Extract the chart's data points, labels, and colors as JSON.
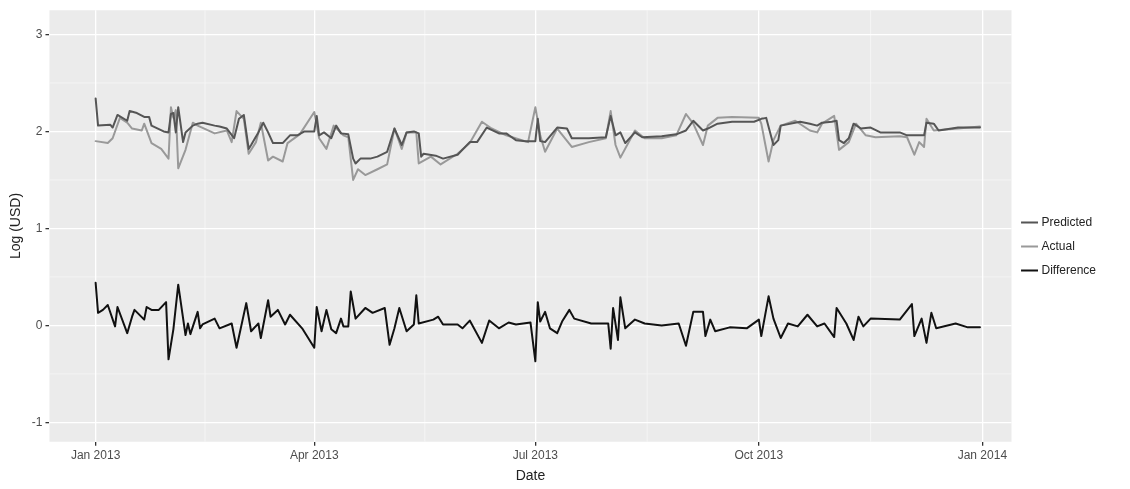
{
  "chart_data": {
    "type": "line",
    "xlabel": "Date",
    "ylabel": "Log (USD)",
    "xlim": [
      "2012-12-13",
      "2014-01-13"
    ],
    "xticks": [
      {
        "value": "2013-01-01",
        "label": "Jan 2013"
      },
      {
        "value": "2013-04-01",
        "label": "Apr 2013"
      },
      {
        "value": "2013-07-01",
        "label": "Jul 2013"
      },
      {
        "value": "2013-10-01",
        "label": "Oct 2013"
      },
      {
        "value": "2014-01-01",
        "label": "Jan 2014"
      }
    ],
    "ylim": [
      -1.2,
      3.25
    ],
    "yticks": [
      -1,
      0,
      1,
      2,
      3
    ],
    "grid": true,
    "legend": "right",
    "line_style": "solid",
    "marker": "none",
    "series": [
      {
        "name": "Predicted",
        "color": "#555555",
        "x": [
          "2013-01-01",
          "2013-01-02",
          "2013-01-07",
          "2013-01-08",
          "2013-01-10",
          "2013-01-14",
          "2013-01-15",
          "2013-01-18",
          "2013-01-21",
          "2013-01-23",
          "2013-01-24",
          "2013-01-29",
          "2013-01-31",
          "2013-02-01",
          "2013-02-02",
          "2013-02-03",
          "2013-02-04",
          "2013-02-06",
          "2013-02-07",
          "2013-02-10",
          "2013-02-12",
          "2013-02-14",
          "2013-02-19",
          "2013-02-21",
          "2013-02-24",
          "2013-02-27",
          "2013-03-01",
          "2013-03-03",
          "2013-03-05",
          "2013-03-06",
          "2013-03-09",
          "2013-03-11",
          "2013-03-13",
          "2013-03-15",
          "2013-03-19",
          "2013-03-22",
          "2013-03-25",
          "2013-03-28",
          "2013-04-01",
          "2013-04-02",
          "2013-04-03",
          "2013-04-05",
          "2013-04-08",
          "2013-04-10",
          "2013-04-12",
          "2013-04-15",
          "2013-04-17",
          "2013-04-18",
          "2013-04-20",
          "2013-04-24",
          "2013-04-27",
          "2013-05-01",
          "2013-05-04",
          "2013-05-07",
          "2013-05-09",
          "2013-05-12",
          "2013-05-14",
          "2013-05-15",
          "2013-05-16",
          "2013-05-21",
          "2013-05-24",
          "2013-05-30",
          "2013-06-04",
          "2013-06-07",
          "2013-06-11",
          "2013-06-16",
          "2013-06-19",
          "2013-06-23",
          "2013-06-27",
          "2013-07-01",
          "2013-07-02",
          "2013-07-03",
          "2013-07-05",
          "2013-07-10",
          "2013-07-14",
          "2013-07-16",
          "2013-07-23",
          "2013-07-30",
          "2013-08-01",
          "2013-08-03",
          "2013-08-05",
          "2013-08-07",
          "2013-08-11",
          "2013-08-14",
          "2013-08-22",
          "2013-08-28",
          "2013-09-01",
          "2013-09-04",
          "2013-09-08",
          "2013-09-10",
          "2013-09-14",
          "2013-09-20",
          "2013-09-29",
          "2013-10-02",
          "2013-10-04",
          "2013-10-07",
          "2013-10-09",
          "2013-10-10",
          "2013-10-18",
          "2013-10-22",
          "2013-10-25",
          "2013-10-27",
          "2013-10-31",
          "2013-11-02",
          "2013-11-03",
          "2013-11-05",
          "2013-11-07",
          "2013-11-09",
          "2013-11-12",
          "2013-11-16",
          "2013-11-20",
          "2013-11-28",
          "2013-12-01",
          "2013-12-04",
          "2013-12-08",
          "2013-12-09",
          "2013-12-12",
          "2013-12-14",
          "2013-12-22",
          "2013-12-31"
        ],
        "values": [
          2.34,
          2.06,
          2.07,
          2.04,
          2.17,
          2.11,
          2.21,
          2.19,
          2.15,
          2.15,
          2.06,
          2.0,
          1.99,
          2.18,
          2.19,
          1.99,
          2.25,
          1.89,
          1.99,
          2.06,
          2.08,
          2.09,
          2.06,
          2.05,
          2.03,
          1.93,
          2.13,
          2.17,
          1.82,
          1.86,
          1.99,
          2.09,
          1.99,
          1.88,
          1.88,
          1.96,
          1.96,
          2.0,
          2.0,
          2.16,
          1.96,
          1.99,
          1.93,
          2.06,
          1.98,
          1.97,
          1.72,
          1.67,
          1.72,
          1.72,
          1.74,
          1.79,
          2.03,
          1.86,
          1.99,
          2.0,
          1.98,
          1.74,
          1.77,
          1.75,
          1.72,
          1.76,
          1.89,
          1.89,
          2.04,
          1.98,
          1.98,
          1.91,
          1.9,
          1.9,
          2.13,
          1.9,
          1.89,
          2.04,
          2.03,
          1.93,
          1.93,
          1.94,
          2.16,
          1.96,
          1.99,
          1.88,
          1.99,
          1.94,
          1.95,
          1.97,
          2.01,
          2.11,
          2.01,
          2.03,
          2.08,
          2.1,
          2.1,
          2.13,
          2.14,
          1.86,
          1.91,
          2.06,
          2.1,
          2.08,
          2.06,
          2.09,
          2.1,
          2.11,
          1.91,
          1.88,
          1.93,
          2.08,
          2.03,
          2.04,
          1.99,
          1.99,
          1.96,
          1.96,
          1.96,
          2.09,
          2.08,
          2.01,
          2.04,
          2.04
        ]
      },
      {
        "name": "Actual",
        "color": "#999999",
        "x": [
          "2013-01-01",
          "2013-01-06",
          "2013-01-08",
          "2013-01-11",
          "2013-01-14",
          "2013-01-16",
          "2013-01-20",
          "2013-01-21",
          "2013-01-24",
          "2013-01-28",
          "2013-01-31",
          "2013-02-01",
          "2013-02-02",
          "2013-02-03",
          "2013-02-04",
          "2013-02-07",
          "2013-02-10",
          "2013-02-12",
          "2013-02-19",
          "2013-02-24",
          "2013-02-26",
          "2013-02-28",
          "2013-03-03",
          "2013-03-05",
          "2013-03-08",
          "2013-03-10",
          "2013-03-13",
          "2013-03-15",
          "2013-03-19",
          "2013-03-21",
          "2013-03-26",
          "2013-04-01",
          "2013-04-03",
          "2013-04-06",
          "2013-04-09",
          "2013-04-13",
          "2013-04-15",
          "2013-04-17",
          "2013-04-19",
          "2013-04-22",
          "2013-04-27",
          "2013-05-01",
          "2013-05-04",
          "2013-05-07",
          "2013-05-09",
          "2013-05-13",
          "2013-05-14",
          "2013-05-19",
          "2013-05-23",
          "2013-05-30",
          "2013-06-04",
          "2013-06-09",
          "2013-06-13",
          "2013-06-19",
          "2013-06-28",
          "2013-07-01",
          "2013-07-03",
          "2013-07-05",
          "2013-07-10",
          "2013-07-16",
          "2013-07-23",
          "2013-07-30",
          "2013-08-01",
          "2013-08-03",
          "2013-08-05",
          "2013-08-11",
          "2013-08-15",
          "2013-08-22",
          "2013-08-28",
          "2013-09-01",
          "2013-09-04",
          "2013-09-08",
          "2013-09-10",
          "2013-09-14",
          "2013-09-20",
          "2013-10-01",
          "2013-10-02",
          "2013-10-05",
          "2013-10-07",
          "2013-10-10",
          "2013-10-16",
          "2013-10-22",
          "2013-10-25",
          "2013-10-27",
          "2013-11-01",
          "2013-11-03",
          "2013-11-07",
          "2013-11-10",
          "2013-11-14",
          "2013-11-18",
          "2013-11-28",
          "2013-12-01",
          "2013-12-04",
          "2013-12-06",
          "2013-12-08",
          "2013-12-09",
          "2013-12-12",
          "2013-12-22",
          "2013-12-31"
        ],
        "values": [
          1.9,
          1.88,
          1.93,
          2.14,
          2.09,
          2.03,
          2.01,
          2.08,
          1.88,
          1.82,
          1.72,
          2.25,
          2.14,
          2.22,
          1.62,
          1.81,
          2.09,
          2.06,
          1.98,
          2.01,
          1.89,
          2.21,
          2.13,
          1.77,
          1.89,
          2.09,
          1.7,
          1.74,
          1.69,
          1.88,
          1.97,
          2.2,
          1.93,
          1.82,
          2.06,
          1.96,
          1.94,
          1.5,
          1.61,
          1.55,
          1.61,
          1.66,
          2.03,
          1.82,
          1.99,
          1.99,
          1.67,
          1.74,
          1.66,
          1.77,
          1.88,
          2.1,
          2.03,
          1.96,
          1.89,
          2.25,
          1.96,
          1.79,
          2.03,
          1.84,
          1.89,
          1.93,
          2.21,
          1.86,
          1.73,
          2.01,
          1.93,
          1.93,
          1.96,
          2.18,
          2.08,
          1.86,
          2.06,
          2.14,
          2.15,
          2.14,
          2.08,
          1.69,
          1.91,
          2.06,
          2.11,
          2.01,
          1.99,
          2.08,
          2.16,
          1.81,
          1.89,
          2.08,
          1.96,
          1.94,
          1.95,
          1.94,
          1.76,
          1.89,
          1.84,
          2.13,
          2.01,
          2.03,
          2.05
        ]
      },
      {
        "name": "Difference",
        "color": "#111111",
        "x": [
          "2013-01-01",
          "2013-01-02",
          "2013-01-04",
          "2013-01-06",
          "2013-01-09",
          "2013-01-10",
          "2013-01-14",
          "2013-01-16",
          "2013-01-17",
          "2013-01-21",
          "2013-01-22",
          "2013-01-24",
          "2013-01-27",
          "2013-01-30",
          "2013-01-31",
          "2013-02-02",
          "2013-02-04",
          "2013-02-07",
          "2013-02-08",
          "2013-02-09",
          "2013-02-12",
          "2013-02-13",
          "2013-02-14",
          "2013-02-19",
          "2013-02-21",
          "2013-02-26",
          "2013-02-28",
          "2013-03-04",
          "2013-03-06",
          "2013-03-09",
          "2013-03-10",
          "2013-03-13",
          "2013-03-14",
          "2013-03-17",
          "2013-03-20",
          "2013-03-22",
          "2013-03-27",
          "2013-04-01",
          "2013-04-02",
          "2013-04-04",
          "2013-04-06",
          "2013-04-08",
          "2013-04-10",
          "2013-04-12",
          "2013-04-13",
          "2013-04-15",
          "2013-04-16",
          "2013-04-18",
          "2013-04-22",
          "2013-04-25",
          "2013-04-30",
          "2013-05-02",
          "2013-05-04",
          "2013-05-06",
          "2013-05-09",
          "2013-05-12",
          "2013-05-13",
          "2013-05-14",
          "2013-05-20",
          "2013-05-22",
          "2013-05-24",
          "2013-05-30",
          "2013-06-01",
          "2013-06-04",
          "2013-06-09",
          "2013-06-12",
          "2013-06-16",
          "2013-06-20",
          "2013-06-23",
          "2013-06-29",
          "2013-07-01",
          "2013-07-02",
          "2013-07-03",
          "2013-07-05",
          "2013-07-07",
          "2013-07-10",
          "2013-07-12",
          "2013-07-15",
          "2013-07-17",
          "2013-07-24",
          "2013-07-31",
          "2013-08-01",
          "2013-08-02",
          "2013-08-04",
          "2013-08-05",
          "2013-08-07",
          "2013-08-11",
          "2013-08-15",
          "2013-08-22",
          "2013-08-29",
          "2013-09-01",
          "2013-09-04",
          "2013-09-08",
          "2013-09-09",
          "2013-09-11",
          "2013-09-13",
          "2013-09-19",
          "2013-09-26",
          "2013-10-01",
          "2013-10-02",
          "2013-10-05",
          "2013-10-07",
          "2013-10-10",
          "2013-10-13",
          "2013-10-17",
          "2013-10-21",
          "2013-10-25",
          "2013-10-28",
          "2013-11-01",
          "2013-11-02",
          "2013-11-06",
          "2013-11-09",
          "2013-11-11",
          "2013-11-13",
          "2013-11-16",
          "2013-11-28",
          "2013-12-03",
          "2013-12-04",
          "2013-12-07",
          "2013-12-09",
          "2013-12-11",
          "2013-12-13",
          "2013-12-21",
          "2013-12-26",
          "2013-12-31"
        ],
        "values": [
          0.44,
          0.13,
          0.16,
          0.21,
          -0.01,
          0.19,
          -0.08,
          0.09,
          0.16,
          0.06,
          0.19,
          0.16,
          0.16,
          0.24,
          -0.35,
          -0.04,
          0.42,
          -0.1,
          0.02,
          -0.09,
          0.14,
          -0.03,
          0.01,
          0.07,
          -0.03,
          0.02,
          -0.23,
          0.23,
          -0.06,
          0.02,
          -0.13,
          0.26,
          0.09,
          0.16,
          0.01,
          0.11,
          -0.03,
          -0.23,
          0.19,
          -0.06,
          0.16,
          -0.04,
          -0.08,
          0.07,
          -0.01,
          -0.01,
          0.35,
          0.07,
          0.18,
          0.13,
          0.18,
          -0.2,
          -0.03,
          0.18,
          -0.06,
          0.01,
          0.31,
          0.02,
          0.06,
          0.09,
          0.01,
          0.01,
          -0.03,
          0.05,
          -0.18,
          0.05,
          -0.03,
          0.03,
          0.01,
          0.03,
          -0.37,
          0.24,
          0.04,
          0.14,
          -0.03,
          -0.08,
          0.04,
          0.16,
          0.07,
          0.02,
          0.02,
          -0.24,
          0.18,
          -0.15,
          0.29,
          -0.03,
          0.06,
          0.02,
          0,
          0.02,
          -0.21,
          0.14,
          0.14,
          -0.11,
          0.06,
          -0.06,
          -0.02,
          -0.03,
          0.06,
          -0.11,
          0.3,
          0.07,
          -0.13,
          0.02,
          -0.01,
          0.11,
          -0.01,
          0.02,
          -0.12,
          0.18,
          0.02,
          -0.15,
          0.09,
          -0.01,
          0.07,
          0.06,
          0.22,
          -0.11,
          0.07,
          -0.18,
          0.13,
          -0.03,
          0.02,
          -0.02,
          -0.02
        ]
      }
    ]
  }
}
